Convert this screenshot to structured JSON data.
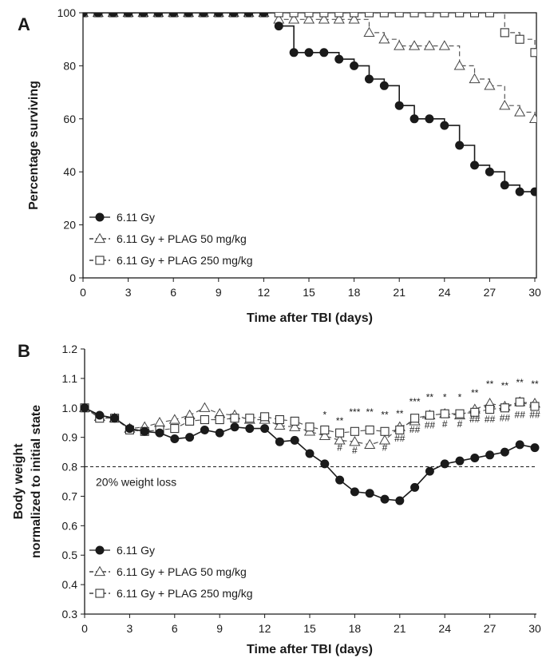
{
  "chart_data": [
    {
      "panel": "A",
      "type": "line",
      "step": true,
      "xlabel": "Time after TBI (days)",
      "ylabel": "Percentage surviving",
      "xlim": [
        0,
        30
      ],
      "ylim": [
        0,
        100
      ],
      "xticks": [
        0,
        3,
        6,
        9,
        12,
        15,
        18,
        21,
        24,
        27,
        30
      ],
      "yticks": [
        0,
        20,
        40,
        60,
        80,
        100
      ],
      "grid": false,
      "legend": "bottom-left",
      "series": [
        {
          "name": "6.11 Gy",
          "marker": "circle-filled",
          "line": "solid",
          "x": [
            0,
            1,
            2,
            3,
            4,
            5,
            6,
            7,
            8,
            9,
            10,
            11,
            12,
            13,
            14,
            15,
            16,
            17,
            18,
            19,
            20,
            21,
            22,
            23,
            24,
            25,
            26,
            27,
            28,
            29,
            30
          ],
          "y": [
            100,
            100,
            100,
            100,
            100,
            100,
            100,
            100,
            100,
            100,
            100,
            100,
            100,
            95,
            85,
            85,
            85,
            82.5,
            80,
            75,
            72.5,
            65,
            60,
            60,
            57.5,
            50,
            42.5,
            40,
            35,
            32.5,
            32.5
          ]
        },
        {
          "name": "6.11 Gy + PLAG 50 mg/kg",
          "marker": "triangle-open",
          "line": "dashed",
          "x": [
            0,
            1,
            2,
            3,
            4,
            5,
            6,
            7,
            8,
            9,
            10,
            11,
            12,
            13,
            14,
            15,
            16,
            17,
            18,
            19,
            20,
            21,
            22,
            23,
            24,
            25,
            26,
            27,
            28,
            29,
            30
          ],
          "y": [
            100,
            100,
            100,
            100,
            100,
            100,
            100,
            100,
            100,
            100,
            100,
            100,
            100,
            97.5,
            97.5,
            97.5,
            97.5,
            97.5,
            97.5,
            92.5,
            90,
            87.5,
            87.5,
            87.5,
            87.5,
            80,
            75,
            72.5,
            65,
            62.5,
            60
          ]
        },
        {
          "name": "6.11 Gy + PLAG 250 mg/kg",
          "marker": "square-open",
          "line": "dashed",
          "x": [
            0,
            1,
            2,
            3,
            4,
            5,
            6,
            7,
            8,
            9,
            10,
            11,
            12,
            13,
            14,
            15,
            16,
            17,
            18,
            19,
            20,
            21,
            22,
            23,
            24,
            25,
            26,
            27,
            28,
            29,
            30
          ],
          "y": [
            100,
            100,
            100,
            100,
            100,
            100,
            100,
            100,
            100,
            100,
            100,
            100,
            100,
            100,
            100,
            100,
            100,
            100,
            100,
            100,
            100,
            100,
            100,
            100,
            100,
            100,
            100,
            100,
            92.5,
            90,
            85
          ]
        }
      ]
    },
    {
      "panel": "B",
      "type": "line",
      "xlabel": "Time after TBI (days)",
      "ylabel": [
        "Body weight",
        "normalized to initial state"
      ],
      "xlim": [
        0,
        30
      ],
      "ylim": [
        0.3,
        1.2
      ],
      "xticks": [
        0,
        3,
        6,
        9,
        12,
        15,
        18,
        21,
        24,
        27,
        30
      ],
      "yticks": [
        "0.3",
        "0.4",
        "0.5",
        "0.6",
        "0.7",
        "0.8",
        "0.9",
        "1.0",
        "1.1",
        "1.2"
      ],
      "grid": false,
      "legend": "bottom-left",
      "reference_line": {
        "y": 0.8,
        "label": "20% weight loss"
      },
      "series": [
        {
          "name": "6.11 Gy",
          "marker": "circle-filled",
          "line": "solid",
          "x": [
            0,
            1,
            2,
            3,
            4,
            5,
            6,
            7,
            8,
            9,
            10,
            11,
            12,
            13,
            14,
            15,
            16,
            17,
            18,
            19,
            20,
            21,
            22,
            23,
            24,
            25,
            26,
            27,
            28,
            29,
            30
          ],
          "y": [
            1.0,
            0.975,
            0.965,
            0.93,
            0.92,
            0.915,
            0.895,
            0.9,
            0.925,
            0.915,
            0.935,
            0.93,
            0.93,
            0.885,
            0.89,
            0.845,
            0.81,
            0.755,
            0.715,
            0.71,
            0.69,
            0.685,
            0.73,
            0.785,
            0.81,
            0.82,
            0.83,
            0.84,
            0.85,
            0.875,
            0.865
          ]
        },
        {
          "name": "6.11 Gy + PLAG 50 mg/kg",
          "marker": "triangle-open",
          "line": "dashed",
          "x": [
            0,
            1,
            2,
            3,
            4,
            5,
            6,
            7,
            8,
            9,
            10,
            11,
            12,
            13,
            14,
            15,
            16,
            17,
            18,
            19,
            20,
            21,
            22,
            23,
            24,
            25,
            26,
            27,
            28,
            29,
            30
          ],
          "y": [
            1.0,
            0.97,
            0.965,
            0.93,
            0.935,
            0.95,
            0.96,
            0.975,
            1.0,
            0.98,
            0.975,
            0.96,
            0.96,
            0.94,
            0.935,
            0.92,
            0.905,
            0.89,
            0.885,
            0.875,
            0.89,
            0.935,
            0.955,
            0.975,
            0.98,
            0.975,
            0.995,
            1.015,
            1.005,
            1.02,
            1.015
          ]
        },
        {
          "name": "6.11 Gy + PLAG 250 mg/kg",
          "marker": "square-open",
          "line": "dashed",
          "x": [
            0,
            1,
            2,
            3,
            4,
            5,
            6,
            7,
            8,
            9,
            10,
            11,
            12,
            13,
            14,
            15,
            16,
            17,
            18,
            19,
            20,
            21,
            22,
            23,
            24,
            25,
            26,
            27,
            28,
            29,
            30
          ],
          "y": [
            1.0,
            0.965,
            0.965,
            0.925,
            0.92,
            0.925,
            0.93,
            0.955,
            0.96,
            0.96,
            0.965,
            0.965,
            0.97,
            0.96,
            0.955,
            0.935,
            0.925,
            0.915,
            0.92,
            0.925,
            0.92,
            0.925,
            0.965,
            0.975,
            0.98,
            0.98,
            0.985,
            0.995,
            1.0,
            1.02,
            1.005
          ]
        }
      ],
      "annotations": [
        {
          "x": 16,
          "y": 0.965,
          "text": "*"
        },
        {
          "x": 17,
          "y": 0.945,
          "text": "**"
        },
        {
          "x": 17,
          "y": 0.855,
          "text": "#"
        },
        {
          "x": 18,
          "y": 0.975,
          "text": "***"
        },
        {
          "x": 18,
          "y": 0.845,
          "text": "#"
        },
        {
          "x": 19,
          "y": 0.975,
          "text": "**"
        },
        {
          "x": 20,
          "y": 0.965,
          "text": "**"
        },
        {
          "x": 20,
          "y": 0.855,
          "text": "#"
        },
        {
          "x": 21,
          "y": 0.97,
          "text": "**"
        },
        {
          "x": 21,
          "y": 0.885,
          "text": "##"
        },
        {
          "x": 22,
          "y": 1.01,
          "text": "***"
        },
        {
          "x": 22,
          "y": 0.915,
          "text": "##"
        },
        {
          "x": 23,
          "y": 1.025,
          "text": "**"
        },
        {
          "x": 23,
          "y": 0.93,
          "text": "##"
        },
        {
          "x": 24,
          "y": 1.025,
          "text": "*"
        },
        {
          "x": 24,
          "y": 0.935,
          "text": "#"
        },
        {
          "x": 25,
          "y": 1.025,
          "text": "*"
        },
        {
          "x": 25,
          "y": 0.935,
          "text": "#"
        },
        {
          "x": 26,
          "y": 1.04,
          "text": "**"
        },
        {
          "x": 26,
          "y": 0.95,
          "text": "##"
        },
        {
          "x": 27,
          "y": 1.07,
          "text": "**"
        },
        {
          "x": 27,
          "y": 0.95,
          "text": "##"
        },
        {
          "x": 28,
          "y": 1.065,
          "text": "**"
        },
        {
          "x": 28,
          "y": 0.955,
          "text": "##"
        },
        {
          "x": 29,
          "y": 1.075,
          "text": "**"
        },
        {
          "x": 29,
          "y": 0.965,
          "text": "##"
        },
        {
          "x": 30,
          "y": 1.07,
          "text": "**"
        },
        {
          "x": 30,
          "y": 0.965,
          "text": "##"
        }
      ]
    }
  ]
}
